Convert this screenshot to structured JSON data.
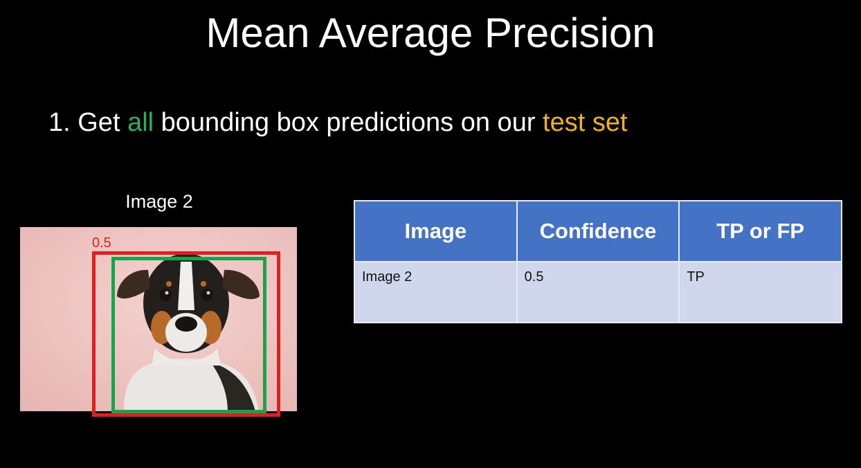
{
  "slide": {
    "title": "Mean Average Precision",
    "bullet": {
      "prefix": "1. Get ",
      "highlight_all": "all",
      "middle": " bounding box predictions on our ",
      "highlight_test": "test set",
      "colors": {
        "all": "#2fae5c",
        "test_set": "#f2b21b"
      }
    },
    "image_panel": {
      "caption": "Image 2",
      "confidence_label": "0.5",
      "prediction_box_color": "#e02020",
      "ground_truth_box_color": "#16a54c"
    },
    "table": {
      "headers": [
        "Image",
        "Confidence",
        "TP or FP"
      ],
      "rows": [
        [
          "Image 2",
          "0.5",
          "TP"
        ]
      ],
      "header_color": "#4472c4",
      "row_color": "#d0d6ec"
    }
  }
}
